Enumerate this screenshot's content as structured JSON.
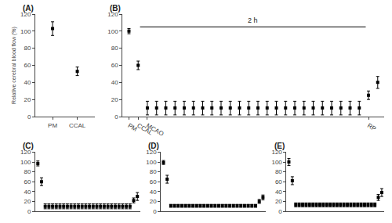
{
  "chart_data": [
    {
      "type": "scatter",
      "title": "(A)",
      "ylabel": "Relative cerebral blood flow (%)",
      "categories": [
        "PM",
        "CCAL"
      ],
      "values": [
        103,
        53
      ],
      "errors": [
        8,
        5
      ],
      "ylim": [
        0,
        120
      ],
      "yticks": [
        0,
        20,
        40,
        60,
        80,
        100,
        120
      ],
      "color": "black",
      "marker": "square",
      "grid": false
    },
    {
      "type": "scatter",
      "title": "(B)",
      "categories": [
        "PM",
        "CCAL",
        "MCAO",
        null,
        null,
        null,
        null,
        null,
        null,
        null,
        null,
        null,
        null,
        null,
        null,
        null,
        null,
        null,
        null,
        null,
        null,
        null,
        null,
        null,
        null,
        null,
        "RP",
        null
      ],
      "values": [
        100,
        60,
        10,
        10,
        10,
        10,
        10,
        10,
        10,
        10,
        10,
        10,
        10,
        10,
        10,
        10,
        10,
        10,
        10,
        10,
        10,
        10,
        10,
        10,
        10,
        10,
        25,
        40
      ],
      "errors": [
        3,
        5,
        8,
        8,
        8,
        8,
        8,
        8,
        8,
        8,
        8,
        8,
        8,
        8,
        8,
        8,
        8,
        8,
        8,
        8,
        8,
        8,
        8,
        8,
        8,
        8,
        5,
        7
      ],
      "ylim": [
        0,
        120
      ],
      "yticks": [
        0,
        20,
        40,
        60,
        80,
        100,
        120
      ],
      "annotations": [
        {
          "text": "2 h",
          "y": 105,
          "from": "CCAL",
          "to": "RP"
        }
      ],
      "color": "black",
      "marker": "square",
      "grid": false
    },
    {
      "type": "scatter",
      "title": "(C)",
      "values": [
        97,
        60,
        10,
        10,
        10,
        10,
        10,
        10,
        10,
        10,
        10,
        10,
        10,
        10,
        10,
        10,
        10,
        10,
        10,
        10,
        10,
        10,
        10,
        10,
        10,
        10,
        22,
        30
      ],
      "errors": [
        5,
        8,
        5,
        5,
        5,
        5,
        5,
        5,
        5,
        5,
        5,
        5,
        5,
        5,
        5,
        5,
        5,
        5,
        5,
        5,
        5,
        5,
        5,
        5,
        5,
        5,
        5,
        8
      ],
      "ylim": [
        0,
        120
      ],
      "yticks": [
        0,
        20,
        40,
        60,
        80,
        100,
        120
      ],
      "tick_labels": "y",
      "color": "black",
      "marker": "square",
      "grid": false
    },
    {
      "type": "scatter",
      "title": "(D)",
      "values": [
        99,
        65,
        11,
        11,
        11,
        11,
        11,
        11,
        11,
        11,
        11,
        11,
        11,
        11,
        11,
        11,
        11,
        11,
        11,
        11,
        11,
        11,
        11,
        11,
        11,
        11,
        20,
        28
      ],
      "errors": [
        4,
        8,
        3,
        3,
        3,
        3,
        3,
        3,
        3,
        3,
        3,
        3,
        3,
        3,
        3,
        3,
        3,
        3,
        3,
        3,
        3,
        3,
        3,
        3,
        3,
        3,
        4,
        5
      ],
      "ylim": [
        0,
        120
      ],
      "yticks": [
        0,
        20,
        40,
        60,
        80,
        100,
        120
      ],
      "tick_labels": "y",
      "color": "black",
      "marker": "square",
      "grid": false
    },
    {
      "type": "scatter",
      "title": "(E)",
      "values": [
        100,
        62,
        13,
        13,
        13,
        13,
        13,
        13,
        13,
        13,
        13,
        13,
        13,
        13,
        13,
        13,
        13,
        13,
        13,
        13,
        13,
        13,
        13,
        13,
        13,
        13,
        28,
        38
      ],
      "errors": [
        7,
        8,
        4,
        4,
        4,
        4,
        4,
        4,
        4,
        4,
        4,
        4,
        4,
        4,
        4,
        4,
        4,
        4,
        4,
        4,
        4,
        4,
        4,
        4,
        4,
        4,
        6,
        8
      ],
      "ylim": [
        0,
        120
      ],
      "yticks": [
        0,
        20,
        40,
        60,
        80,
        100,
        120
      ],
      "tick_labels": "y",
      "color": "black",
      "marker": "square",
      "grid": false
    }
  ]
}
